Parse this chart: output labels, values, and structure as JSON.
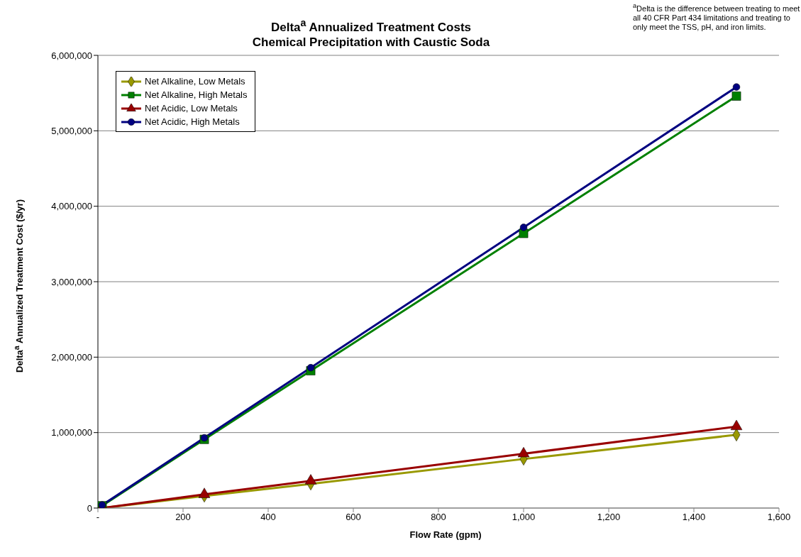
{
  "chart_data": {
    "type": "line",
    "title": "Delta$^{a}$ Annualized Treatment Costs\nChemical Precipitation with Caustic Soda",
    "xlabel": "Flow Rate (gpm)",
    "ylabel": "Delta$^{a}$ Annualized Treatment Cost ($/yr)",
    "annotations": [
      "$^{a}$Delta is the difference between treating to meet all 40 CFR Part 434 limitations and treating to only meet the TSS, pH, and iron limits."
    ],
    "x": [
      10,
      250,
      500,
      1000,
      1500
    ],
    "series": [
      {
        "name": "Net Alkaline, Low Metals",
        "color": "#999900",
        "marker": "diamond",
        "values": [
          0,
          160000,
          320000,
          650000,
          970000
        ]
      },
      {
        "name": "Net Alkaline, High Metals",
        "color": "#008000",
        "marker": "square",
        "values": [
          30000,
          910000,
          1820000,
          3640000,
          5460000
        ]
      },
      {
        "name": "Net Acidic, Low Metals",
        "color": "#990000",
        "marker": "triangle",
        "values": [
          0,
          180000,
          360000,
          720000,
          1080000
        ]
      },
      {
        "name": "Net Acidic, High Metals",
        "color": "#000080",
        "marker": "circle",
        "values": [
          40000,
          930000,
          1860000,
          3720000,
          5580000
        ]
      }
    ],
    "xlim": [
      0,
      1600
    ],
    "xticks": [
      {
        "value": 0,
        "label": "-"
      },
      200,
      400,
      600,
      800,
      {
        "value": 1000,
        "label": "1,000"
      },
      {
        "value": 1200,
        "label": "1,200"
      },
      {
        "value": 1400,
        "label": "1,400"
      },
      {
        "value": 1600,
        "label": "1,600"
      }
    ],
    "ylim": [
      0,
      6000000
    ],
    "yticks": [
      0,
      {
        "value": 1000000,
        "label": "1,000,000"
      },
      {
        "value": 2000000,
        "label": "2,000,000"
      },
      {
        "value": 3000000,
        "label": "3,000,000"
      },
      {
        "value": 4000000,
        "label": "4,000,000"
      },
      {
        "value": 5000000,
        "label": "5,000,000"
      },
      {
        "value": 6000000,
        "label": "6,000,000"
      }
    ],
    "grid": "y",
    "legend": "top left",
    "line_style": "solid"
  }
}
